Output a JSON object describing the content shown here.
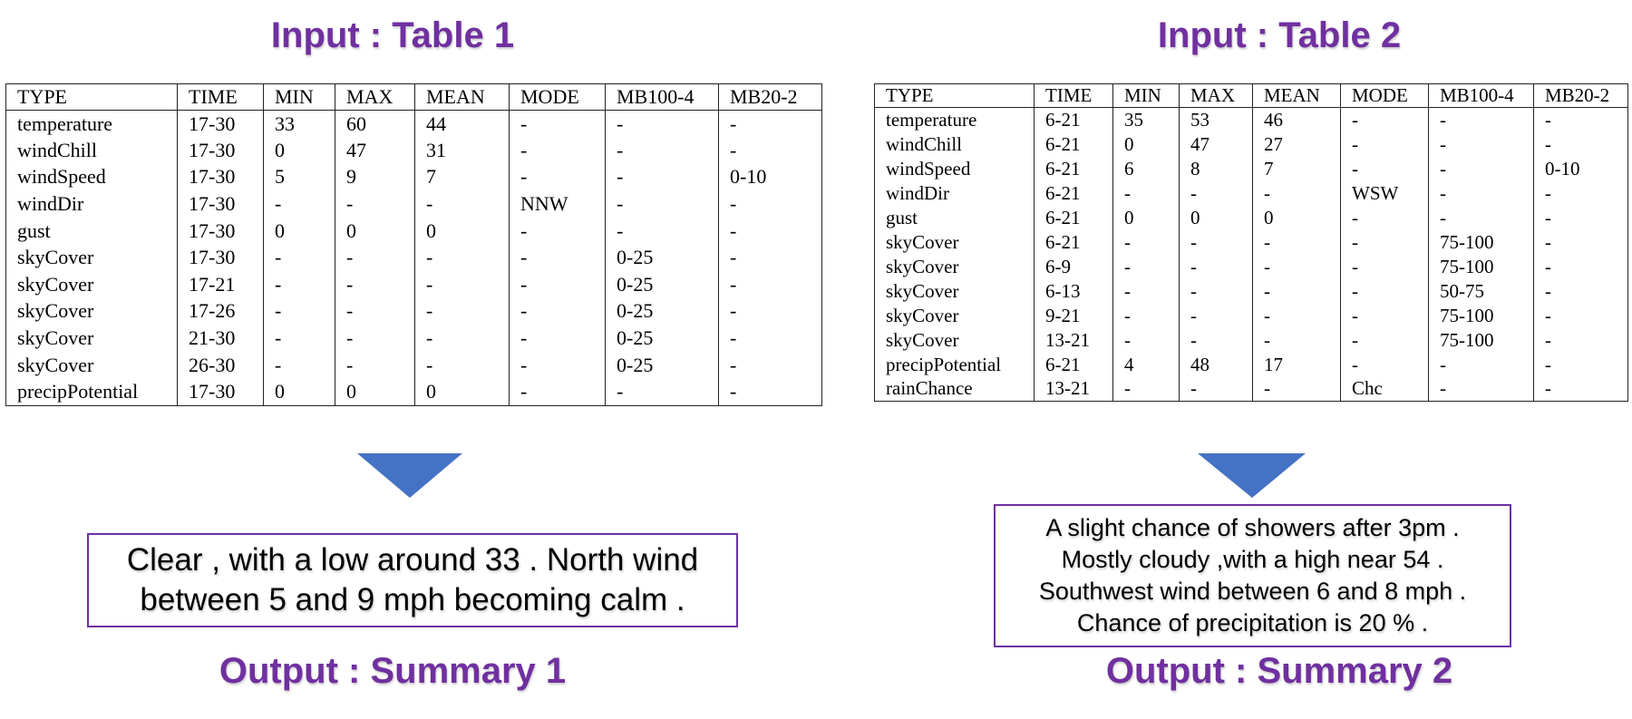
{
  "panels": [
    {
      "title": "Input : Table 1",
      "table": {
        "header": [
          "TYPE",
          "TIME",
          "MIN",
          "MAX",
          "MEAN",
          "MODE",
          "MB100-4",
          "MB20-2"
        ],
        "rows": [
          [
            "temperature",
            "17-30",
            "33",
            "60",
            "44",
            "-",
            "-",
            "-"
          ],
          [
            "windChill",
            "17-30",
            "0",
            "47",
            "31",
            "-",
            "-",
            "-"
          ],
          [
            "windSpeed",
            "17-30",
            "5",
            "9",
            "7",
            "-",
            "-",
            "0-10"
          ],
          [
            "windDir",
            "17-30",
            "-",
            "-",
            "-",
            "NNW",
            "-",
            "-"
          ],
          [
            "gust",
            "17-30",
            "0",
            "0",
            "0",
            "-",
            "-",
            "-"
          ],
          [
            "skyCover",
            "17-30",
            "-",
            "-",
            "-",
            "-",
            "0-25",
            "-"
          ],
          [
            "skyCover",
            "17-21",
            "-",
            "-",
            "-",
            "-",
            "0-25",
            "-"
          ],
          [
            "skyCover",
            "17-26",
            "-",
            "-",
            "-",
            "-",
            "0-25",
            "-"
          ],
          [
            "skyCover",
            "21-30",
            "-",
            "-",
            "-",
            "-",
            "0-25",
            "-"
          ],
          [
            "skyCover",
            "26-30",
            "-",
            "-",
            "-",
            "-",
            "0-25",
            "-"
          ],
          [
            "precipPotential",
            "17-30",
            "0",
            "0",
            "0",
            "-",
            "-",
            "-"
          ]
        ]
      },
      "summary": [
        "Clear , with a low around 33 . North wind",
        "between 5 and 9 mph becoming calm ."
      ],
      "output_label": "Output : Summary 1"
    },
    {
      "title": "Input : Table 2",
      "table": {
        "header": [
          "TYPE",
          "TIME",
          "MIN",
          "MAX",
          "MEAN",
          "MODE",
          "MB100-4",
          "MB20-2"
        ],
        "rows": [
          [
            "temperature",
            "6-21",
            "35",
            "53",
            "46",
            "-",
            "-",
            "-"
          ],
          [
            "windChill",
            "6-21",
            "0",
            "47",
            "27",
            "-",
            "-",
            "-"
          ],
          [
            "windSpeed",
            "6-21",
            "6",
            "8",
            "7",
            "-",
            "-",
            "0-10"
          ],
          [
            "windDir",
            "6-21",
            "-",
            "-",
            "-",
            "WSW",
            "-",
            "-"
          ],
          [
            "gust",
            "6-21",
            "0",
            "0",
            "0",
            "-",
            "-",
            "-"
          ],
          [
            "skyCover",
            "6-21",
            "-",
            "-",
            "-",
            "-",
            "75-100",
            "-"
          ],
          [
            "skyCover",
            "6-9",
            "-",
            "-",
            "-",
            "-",
            "75-100",
            "-"
          ],
          [
            "skyCover",
            "6-13",
            "-",
            "-",
            "-",
            "-",
            "50-75",
            "-"
          ],
          [
            "skyCover",
            "9-21",
            "-",
            "-",
            "-",
            "-",
            "75-100",
            "-"
          ],
          [
            "skyCover",
            "13-21",
            "-",
            "-",
            "-",
            "-",
            "75-100",
            "-"
          ],
          [
            "precipPotential",
            "6-21",
            "4",
            "48",
            "17",
            "-",
            "-",
            "-"
          ],
          [
            "rainChance",
            "13-21",
            "-",
            "-",
            "-",
            "Chc",
            "-",
            "-"
          ]
        ]
      },
      "summary": [
        "A slight chance of showers after 3pm .",
        "Mostly cloudy ,with a high near 54 .",
        "Southwest wind between 6 and 8 mph .",
        "Chance of precipitation is 20 % ."
      ],
      "output_label": "Output : Summary 2"
    }
  ]
}
